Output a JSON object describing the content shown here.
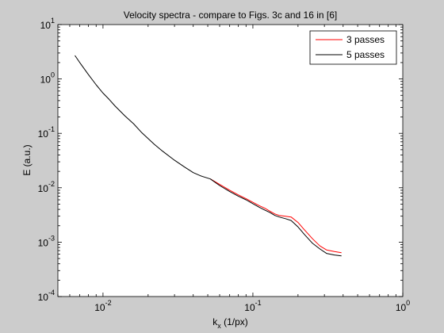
{
  "chart_data": {
    "type": "line",
    "title": "Velocity spectra - compare to Figs. 3c and 16 in [6]",
    "xlabel": "k",
    "xlabel_sub": "x",
    "xlabel_unit": " (1/px)",
    "ylabel": "E (a.u.)",
    "xscale": "log",
    "yscale": "log",
    "xlim": [
      0.005,
      1
    ],
    "ylim": [
      0.0001,
      10
    ],
    "x_ticks": [
      {
        "value": 0.01,
        "base": "10",
        "exp": "-2"
      },
      {
        "value": 0.1,
        "base": "10",
        "exp": "-1"
      },
      {
        "value": 1,
        "base": "10",
        "exp": "0"
      }
    ],
    "y_ticks": [
      {
        "value": 0.0001,
        "base": "10",
        "exp": "-4"
      },
      {
        "value": 0.001,
        "base": "10",
        "exp": "-3"
      },
      {
        "value": 0.01,
        "base": "10",
        "exp": "-2"
      },
      {
        "value": 0.1,
        "base": "10",
        "exp": "-1"
      },
      {
        "value": 1,
        "base": "10",
        "exp": "0"
      },
      {
        "value": 10,
        "base": "10",
        "exp": "1"
      }
    ],
    "grid": false,
    "legend": {
      "placement": "top-right"
    },
    "series": [
      {
        "name": "3 passes",
        "color": "#ff0000",
        "x": [
          0.052,
          0.06,
          0.07,
          0.08,
          0.09,
          0.1,
          0.11,
          0.12,
          0.13,
          0.14,
          0.15,
          0.165,
          0.18,
          0.2,
          0.22,
          0.25,
          0.28,
          0.31,
          0.35,
          0.39
        ],
        "y": [
          0.0145,
          0.0115,
          0.009,
          0.0074,
          0.0063,
          0.0054,
          0.0047,
          0.0042,
          0.0037,
          0.0033,
          0.0031,
          0.003,
          0.0029,
          0.0023,
          0.0017,
          0.00115,
          0.00085,
          0.00072,
          0.00067,
          0.00064
        ]
      },
      {
        "name": "5 passes",
        "color": "#000000",
        "x": [
          0.0065,
          0.007,
          0.008,
          0.009,
          0.01,
          0.011,
          0.012,
          0.014,
          0.016,
          0.018,
          0.02,
          0.022,
          0.025,
          0.03,
          0.035,
          0.04,
          0.045,
          0.052,
          0.06,
          0.07,
          0.08,
          0.09,
          0.1,
          0.11,
          0.12,
          0.13,
          0.14,
          0.15,
          0.165,
          0.18,
          0.2,
          0.22,
          0.25,
          0.28,
          0.31,
          0.35,
          0.39
        ],
        "y": [
          2.7,
          2.0,
          1.2,
          0.78,
          0.55,
          0.42,
          0.32,
          0.21,
          0.15,
          0.105,
          0.08,
          0.063,
          0.047,
          0.032,
          0.024,
          0.019,
          0.0165,
          0.0145,
          0.011,
          0.0085,
          0.007,
          0.006,
          0.0051,
          0.0044,
          0.0039,
          0.0035,
          0.0031,
          0.0029,
          0.0027,
          0.0025,
          0.0019,
          0.0014,
          0.00095,
          0.00075,
          0.00062,
          0.00058,
          0.00056
        ]
      }
    ]
  }
}
